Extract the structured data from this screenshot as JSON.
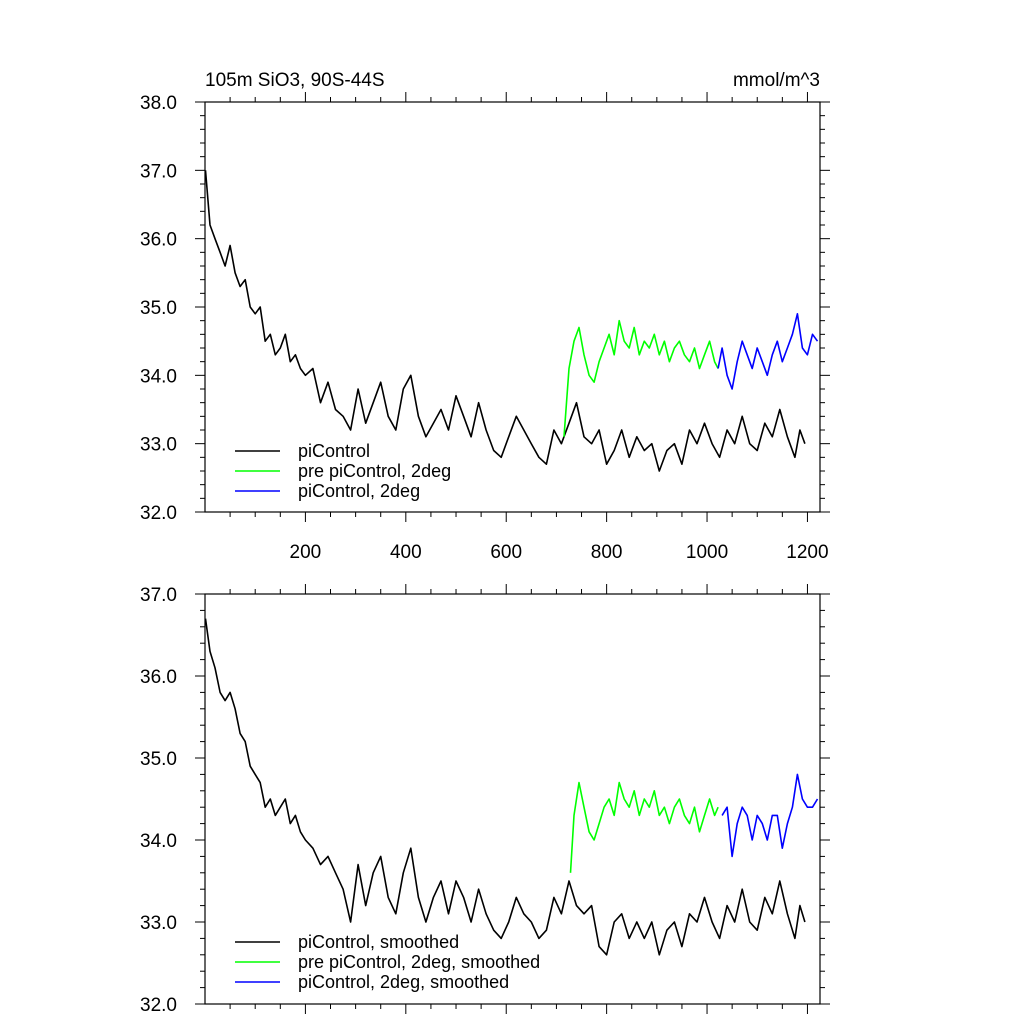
{
  "chart_data": [
    {
      "type": "line",
      "title": "",
      "left_string": "105m SiO3, 90S-44S",
      "right_string": "mmol/m^3",
      "xlabel": "",
      "ylabel": "",
      "xlim": [
        0,
        1225
      ],
      "ylim": [
        32.0,
        38.0
      ],
      "x_ticks": [
        200,
        400,
        600,
        800,
        1000,
        1200
      ],
      "x_tick_labels": [
        "200",
        "400",
        "600",
        "800",
        "1000",
        "1200"
      ],
      "y_ticks": [
        32,
        33,
        34,
        35,
        36,
        37,
        38
      ],
      "y_tick_labels": [
        "32.0",
        "33.0",
        "34.0",
        "35.0",
        "36.0",
        "37.0",
        "38.0"
      ],
      "legend_position": "bottom-left",
      "grid": false,
      "series": [
        {
          "name": "piControl",
          "color": "#000000",
          "x": [
            1,
            10,
            20,
            30,
            40,
            50,
            60,
            70,
            80,
            90,
            100,
            110,
            120,
            130,
            140,
            150,
            160,
            170,
            180,
            190,
            200,
            215,
            230,
            245,
            260,
            275,
            290,
            305,
            320,
            335,
            350,
            365,
            380,
            395,
            410,
            425,
            440,
            455,
            470,
            485,
            500,
            515,
            530,
            545,
            560,
            575,
            590,
            605,
            620,
            635,
            650,
            665,
            680,
            695,
            710,
            725,
            740,
            755,
            770,
            785,
            800,
            815,
            830,
            845,
            860,
            875,
            890,
            905,
            920,
            935,
            950,
            965,
            980,
            995,
            1010,
            1025,
            1040,
            1055,
            1070,
            1085,
            1100,
            1115,
            1130,
            1145,
            1160,
            1175,
            1185,
            1195
          ],
          "y": [
            37.0,
            36.2,
            36.0,
            35.8,
            35.6,
            35.9,
            35.5,
            35.3,
            35.4,
            35.0,
            34.9,
            35.0,
            34.5,
            34.6,
            34.3,
            34.4,
            34.6,
            34.2,
            34.3,
            34.1,
            34.0,
            34.1,
            33.6,
            33.9,
            33.5,
            33.4,
            33.2,
            33.8,
            33.3,
            33.6,
            33.9,
            33.4,
            33.2,
            33.8,
            34.0,
            33.4,
            33.1,
            33.3,
            33.5,
            33.2,
            33.7,
            33.4,
            33.1,
            33.6,
            33.2,
            32.9,
            32.8,
            33.1,
            33.4,
            33.2,
            33.0,
            32.8,
            32.7,
            33.2,
            33.0,
            33.3,
            33.6,
            33.1,
            33.0,
            33.2,
            32.7,
            32.9,
            33.2,
            32.8,
            33.1,
            32.9,
            33.0,
            32.6,
            32.9,
            33.0,
            32.7,
            33.2,
            33.0,
            33.3,
            33.0,
            32.8,
            33.2,
            33.0,
            33.4,
            33.0,
            32.9,
            33.3,
            33.1,
            33.5,
            33.1,
            32.8,
            33.2,
            33.0
          ]
        },
        {
          "name": "pre piControl, 2deg",
          "color": "#00ff00",
          "x": [
            715,
            725,
            735,
            745,
            755,
            765,
            775,
            785,
            795,
            805,
            815,
            825,
            835,
            845,
            855,
            865,
            875,
            885,
            895,
            905,
            915,
            925,
            935,
            945,
            955,
            965,
            975,
            985,
            995,
            1005,
            1015,
            1022
          ],
          "y": [
            33.1,
            34.1,
            34.5,
            34.7,
            34.3,
            34.0,
            33.9,
            34.2,
            34.4,
            34.6,
            34.3,
            34.8,
            34.5,
            34.4,
            34.7,
            34.3,
            34.5,
            34.4,
            34.6,
            34.3,
            34.5,
            34.2,
            34.4,
            34.5,
            34.3,
            34.2,
            34.4,
            34.1,
            34.3,
            34.5,
            34.2,
            34.1
          ]
        },
        {
          "name": "piControl, 2deg",
          "color": "#0000ff",
          "x": [
            1022,
            1030,
            1040,
            1050,
            1060,
            1070,
            1080,
            1090,
            1100,
            1110,
            1120,
            1130,
            1140,
            1150,
            1160,
            1170,
            1180,
            1190,
            1200,
            1210,
            1220
          ],
          "y": [
            34.1,
            34.4,
            34.0,
            33.8,
            34.2,
            34.5,
            34.3,
            34.1,
            34.4,
            34.2,
            34.0,
            34.3,
            34.5,
            34.2,
            34.4,
            34.6,
            34.9,
            34.4,
            34.3,
            34.6,
            34.5
          ]
        }
      ]
    },
    {
      "type": "line",
      "title": "",
      "xlabel": "",
      "ylabel": "",
      "xlim": [
        0,
        1225
      ],
      "ylim": [
        32.0,
        37.0
      ],
      "x_ticks": [
        200,
        400,
        600,
        800,
        1000,
        1200
      ],
      "x_tick_labels": [],
      "y_ticks": [
        32,
        33,
        34,
        35,
        36,
        37
      ],
      "y_tick_labels": [
        "32.0",
        "33.0",
        "34.0",
        "35.0",
        "36.0",
        "37.0"
      ],
      "legend_position": "bottom-left",
      "grid": false,
      "series": [
        {
          "name": "piControl, smoothed",
          "color": "#000000",
          "x": [
            1,
            10,
            20,
            30,
            40,
            50,
            60,
            70,
            80,
            90,
            100,
            110,
            120,
            130,
            140,
            150,
            160,
            170,
            180,
            190,
            200,
            215,
            230,
            245,
            260,
            275,
            290,
            305,
            320,
            335,
            350,
            365,
            380,
            395,
            410,
            425,
            440,
            455,
            470,
            485,
            500,
            515,
            530,
            545,
            560,
            575,
            590,
            605,
            620,
            635,
            650,
            665,
            680,
            695,
            710,
            725,
            740,
            755,
            770,
            785,
            800,
            815,
            830,
            845,
            860,
            875,
            890,
            905,
            920,
            935,
            950,
            965,
            980,
            995,
            1010,
            1025,
            1040,
            1055,
            1070,
            1085,
            1100,
            1115,
            1130,
            1145,
            1160,
            1175,
            1185,
            1195
          ],
          "y": [
            36.7,
            36.3,
            36.1,
            35.8,
            35.7,
            35.8,
            35.6,
            35.3,
            35.2,
            34.9,
            34.8,
            34.7,
            34.4,
            34.5,
            34.3,
            34.4,
            34.5,
            34.2,
            34.3,
            34.1,
            34.0,
            33.9,
            33.7,
            33.8,
            33.6,
            33.4,
            33.0,
            33.7,
            33.2,
            33.6,
            33.8,
            33.3,
            33.1,
            33.6,
            33.9,
            33.3,
            33.0,
            33.3,
            33.5,
            33.1,
            33.5,
            33.3,
            33.0,
            33.4,
            33.1,
            32.9,
            32.8,
            33.0,
            33.3,
            33.1,
            33.0,
            32.8,
            32.9,
            33.3,
            33.1,
            33.5,
            33.2,
            33.1,
            33.2,
            32.7,
            32.6,
            33.0,
            33.1,
            32.8,
            33.0,
            32.8,
            33.0,
            32.6,
            32.9,
            33.0,
            32.7,
            33.1,
            33.0,
            33.3,
            33.0,
            32.8,
            33.2,
            33.0,
            33.4,
            33.0,
            32.9,
            33.3,
            33.1,
            33.5,
            33.1,
            32.8,
            33.2,
            33.0
          ]
        },
        {
          "name": "pre piControl, 2deg, smoothed",
          "color": "#00ff00",
          "x": [
            728,
            735,
            745,
            755,
            765,
            775,
            785,
            795,
            805,
            815,
            825,
            835,
            845,
            855,
            865,
            875,
            885,
            895,
            905,
            915,
            925,
            935,
            945,
            955,
            965,
            975,
            985,
            995,
            1005,
            1015,
            1022
          ],
          "y": [
            33.6,
            34.3,
            34.7,
            34.4,
            34.1,
            34.0,
            34.2,
            34.4,
            34.5,
            34.3,
            34.7,
            34.5,
            34.4,
            34.6,
            34.3,
            34.5,
            34.4,
            34.6,
            34.3,
            34.4,
            34.2,
            34.4,
            34.5,
            34.3,
            34.2,
            34.4,
            34.1,
            34.3,
            34.5,
            34.3,
            34.4
          ]
        },
        {
          "name": "piControl, 2deg, smoothed",
          "color": "#0000ff",
          "x": [
            1030,
            1040,
            1050,
            1060,
            1070,
            1080,
            1090,
            1100,
            1110,
            1120,
            1130,
            1140,
            1150,
            1160,
            1170,
            1180,
            1190,
            1200,
            1210,
            1220
          ],
          "y": [
            34.3,
            34.4,
            33.8,
            34.2,
            34.4,
            34.3,
            34.0,
            34.3,
            34.2,
            34.0,
            34.3,
            34.3,
            33.9,
            34.2,
            34.4,
            34.8,
            34.5,
            34.4,
            34.4,
            34.5
          ]
        }
      ]
    }
  ]
}
